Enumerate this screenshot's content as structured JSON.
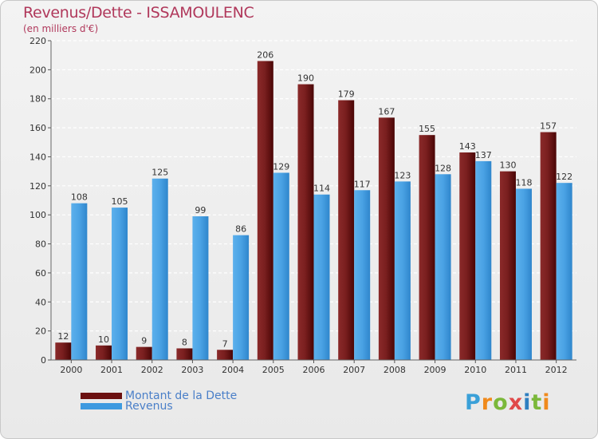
{
  "title": "Revenus/Dette - ISSAMOULENC",
  "subtitle": "(en milliers d'€)",
  "logo": "Proxiti",
  "legend": [
    {
      "label": "Montant de la Dette",
      "color": "#6b1010"
    },
    {
      "label": "Revenus",
      "color": "#3d9ae0"
    }
  ],
  "chart_data": {
    "type": "bar",
    "categories": [
      "2000",
      "2001",
      "2002",
      "2003",
      "2004",
      "2005",
      "2006",
      "2007",
      "2008",
      "2009",
      "2010",
      "2011",
      "2012"
    ],
    "series": [
      {
        "name": "Montant de la Dette",
        "values": [
          12,
          10,
          9,
          8,
          7,
          206,
          190,
          179,
          167,
          155,
          143,
          130,
          157
        ]
      },
      {
        "name": "Revenus",
        "values": [
          108,
          105,
          125,
          99,
          86,
          129,
          114,
          117,
          123,
          128,
          137,
          118,
          122
        ]
      }
    ],
    "ylim": [
      0,
      220
    ],
    "yticks": [
      0,
      20,
      40,
      60,
      80,
      100,
      120,
      140,
      160,
      180,
      200,
      220
    ],
    "title": "Revenus/Dette - ISSAMOULENC",
    "ylabel": "(en milliers d'€)",
    "grid": true,
    "legend_position": "bottom-left"
  }
}
